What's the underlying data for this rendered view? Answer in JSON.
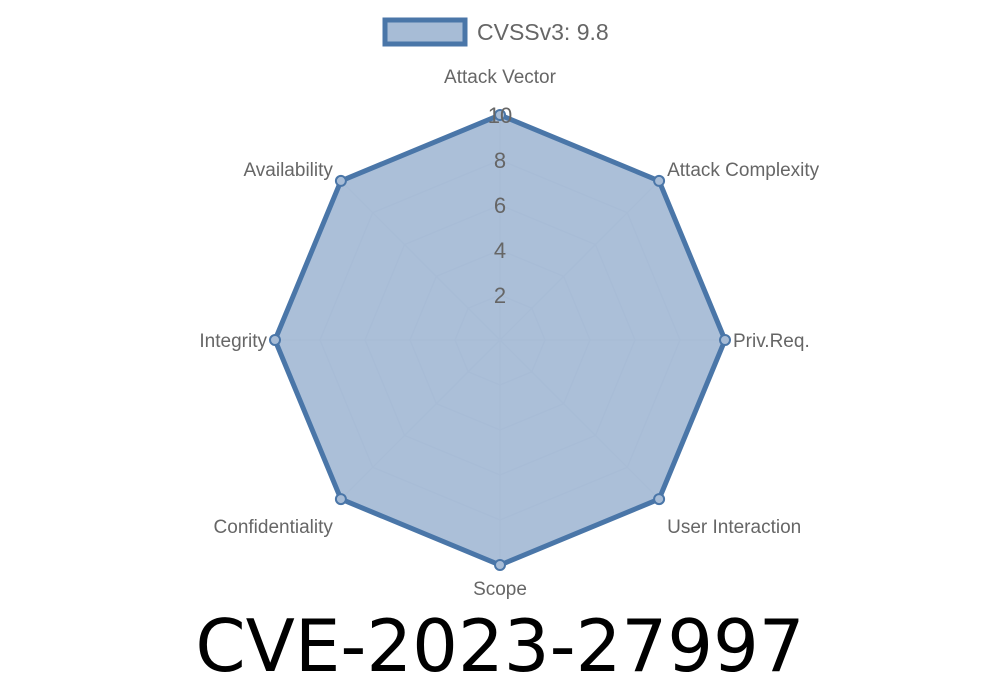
{
  "chart_data": {
    "type": "radar",
    "legend": {
      "label": "CVSSv3: 9.8",
      "placement": "top"
    },
    "axes": [
      "Attack Vector",
      "Attack Complexity",
      "Priv.Req.",
      "User Interaction",
      "Scope",
      "Confidentiality",
      "Integrity",
      "Availability"
    ],
    "series": [
      {
        "name": "CVSSv3: 9.8",
        "values": [
          10,
          10,
          10,
          10,
          10,
          10,
          10,
          10
        ]
      }
    ],
    "rlim": [
      0,
      10
    ],
    "ticks": [
      2,
      4,
      6,
      8,
      10
    ],
    "grid": true,
    "colors": {
      "stroke": "#4a76a8",
      "fill": "#a7bcd6",
      "grid": "#bfc6d0",
      "text": "#666666"
    }
  },
  "title": "CVE-2023-27997"
}
